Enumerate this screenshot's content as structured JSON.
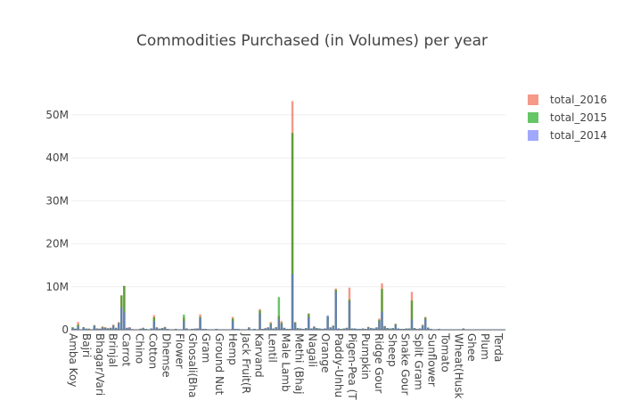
{
  "chart_data": {
    "type": "bar",
    "barmode": "overlay",
    "title": "Commodities Purchased (in Volumes) per year",
    "xlabel": "",
    "ylabel": "",
    "ylim": [
      0,
      56000000
    ],
    "y_ticks": [
      {
        "value": 0,
        "label": "0"
      },
      {
        "value": 10000000,
        "label": "10M"
      },
      {
        "value": 20000000,
        "label": "20M"
      },
      {
        "value": 30000000,
        "label": "30M"
      },
      {
        "value": 40000000,
        "label": "40M"
      },
      {
        "value": 50000000,
        "label": "50M"
      }
    ],
    "grid": true,
    "legend_position": "top-right",
    "x_tick_labels": [
      "Amba Koy",
      "Bajri",
      "Bhagar/Vari",
      "Brinjal",
      "Carrot",
      "Chino",
      "Cotton",
      "Dhemse",
      "Flower",
      "Ghosali(Bha",
      "Gram",
      "Ground Nut",
      "Hemp",
      "Jack Fruit(R",
      "Karvand",
      "Lentil",
      "Male Lamb",
      "Methi (Bhaj",
      "Nagali",
      "Orange",
      "Paddy-Unhu",
      "Pigen-Pea (T",
      "Pumpkin",
      "Ridge Gour",
      "Sheep",
      "Snake Gour",
      "Split Gram",
      "Sunflower",
      "Tomato",
      "Wheat(Husk",
      "Ghee",
      "Plum",
      "Terda"
    ],
    "series": [
      {
        "name": "total_2016",
        "color": "#ef553b",
        "opacity": 0.6,
        "values": [
          0.5,
          0.2,
          1.8,
          0.1,
          0.6,
          0.2,
          0.3,
          0.1,
          1.1,
          0.3,
          0.3,
          0.8,
          0.6,
          0.4,
          0.5,
          1.2,
          0.5,
          1.8,
          8.0,
          10.2,
          0.5,
          0.6,
          0.2,
          0.1,
          0.1,
          0.3,
          0.5,
          0.2,
          0.1,
          0.3,
          3.4,
          0.6,
          0.3,
          0.4,
          0.7,
          0.2,
          0.1,
          0.1,
          0.2,
          0.1,
          0.1,
          2.8,
          0.3,
          0.1,
          0.2,
          0.3,
          0.3,
          3.6,
          0.2,
          0.2,
          0.1,
          0.1,
          0.1,
          0.2,
          0.1,
          0.1,
          0.1,
          0.1,
          0.1,
          3.0,
          0.2,
          0.2,
          0.1,
          0.1,
          0.1,
          0.6,
          0.1,
          0.2,
          0.1,
          4.8,
          0.2,
          0.4,
          0.6,
          1.8,
          0.3,
          0.6,
          3.2,
          2.0,
          0.5,
          0.2,
          0.2,
          53.2,
          1.8,
          0.4,
          0.3,
          0.2,
          0.4,
          3.8,
          0.3,
          0.8,
          0.4,
          0.3,
          0.2,
          0.3,
          2.9,
          0.6,
          1.0,
          9.6,
          0.3,
          0.2,
          0.3,
          0.5,
          9.8,
          0.3,
          0.3,
          0.2,
          0.2,
          0.3,
          0.2,
          0.7,
          0.4,
          0.3,
          0.6,
          2.6,
          10.8,
          0.9,
          0.4,
          0.3,
          0.4,
          1.4,
          0.3,
          0.2,
          0.2,
          0.3,
          0.3,
          8.8,
          0.4,
          0.2,
          0.3,
          1.2,
          3.0,
          0.5,
          0.2,
          0.1,
          0.1,
          0.2,
          0.1,
          0.1,
          0.1,
          0.1,
          0.1,
          0.1,
          0.1,
          0.1,
          0.3,
          0.1,
          0.1,
          0.1,
          0.1,
          0.1,
          0.1,
          0.1,
          0.1,
          0.1,
          0.1,
          0.1,
          0.1,
          0.1,
          0.1,
          0.1
        ]
      },
      {
        "name": "total_2015",
        "color": "#00a000",
        "opacity": 0.6,
        "values": [
          0.6,
          0.3,
          1.2,
          0.1,
          0.6,
          0.3,
          0.2,
          0.1,
          1.0,
          0.3,
          0.2,
          0.6,
          0.5,
          0.3,
          0.4,
          1.0,
          0.4,
          1.6,
          8.0,
          10.2,
          0.4,
          0.5,
          0.1,
          0.1,
          0.1,
          0.2,
          0.4,
          0.2,
          0.1,
          0.3,
          2.9,
          0.5,
          0.2,
          0.4,
          0.6,
          0.2,
          0.1,
          0.1,
          0.2,
          0.1,
          0.1,
          3.5,
          0.3,
          0.1,
          0.2,
          0.2,
          0.3,
          3.0,
          0.2,
          0.2,
          0.1,
          0.1,
          0.1,
          0.2,
          0.1,
          0.1,
          0.1,
          0.1,
          0.1,
          2.6,
          0.2,
          0.2,
          0.1,
          0.1,
          0.1,
          0.5,
          0.1,
          0.2,
          0.1,
          4.5,
          0.2,
          0.3,
          0.5,
          1.5,
          0.3,
          0.6,
          7.6,
          1.6,
          0.4,
          0.2,
          0.2,
          45.8,
          1.7,
          0.4,
          0.3,
          0.2,
          0.4,
          3.7,
          0.3,
          0.7,
          0.4,
          0.3,
          0.2,
          0.3,
          3.2,
          0.5,
          0.9,
          9.3,
          0.3,
          0.2,
          0.3,
          0.4,
          7.0,
          0.3,
          0.3,
          0.2,
          0.2,
          0.3,
          0.2,
          0.6,
          0.4,
          0.3,
          0.5,
          2.3,
          9.5,
          0.8,
          0.4,
          0.3,
          0.4,
          1.3,
          0.3,
          0.2,
          0.2,
          0.3,
          0.3,
          6.8,
          0.4,
          0.2,
          0.3,
          1.0,
          2.8,
          0.5,
          0.2,
          0.1,
          0.1,
          0.2,
          0.1,
          0.1,
          0.1,
          0.1,
          0.1,
          0.1,
          0.1,
          0.1,
          0.3,
          0.1,
          0.1,
          0.1,
          0.1,
          0.1,
          0.1,
          0.1,
          0.1,
          0.1,
          0.1,
          0.1,
          0.1,
          0.1,
          0.1,
          0.1
        ]
      },
      {
        "name": "total_2014",
        "color": "#636efa",
        "opacity": 0.6,
        "values": [
          0.4,
          0.2,
          0.8,
          0.1,
          0.5,
          0.2,
          0.2,
          0.1,
          0.9,
          0.3,
          0.2,
          0.5,
          0.4,
          0.3,
          0.3,
          0.9,
          0.4,
          1.5,
          5.2,
          4.0,
          0.4,
          0.5,
          0.1,
          0.1,
          0.1,
          0.2,
          0.3,
          0.2,
          0.1,
          0.3,
          2.0,
          0.5,
          0.2,
          0.3,
          0.5,
          0.2,
          0.1,
          0.1,
          0.2,
          0.1,
          0.1,
          2.0,
          0.3,
          0.1,
          0.2,
          0.2,
          0.3,
          2.7,
          0.2,
          0.2,
          0.1,
          0.1,
          0.1,
          0.2,
          0.1,
          0.1,
          0.1,
          0.1,
          0.1,
          2.0,
          0.2,
          0.2,
          0.1,
          0.1,
          0.1,
          0.5,
          0.1,
          0.2,
          0.1,
          3.8,
          0.2,
          0.3,
          0.5,
          1.2,
          0.3,
          0.5,
          2.6,
          1.3,
          0.4,
          0.2,
          0.2,
          13.0,
          1.5,
          0.3,
          0.3,
          0.2,
          0.3,
          3.0,
          0.3,
          0.6,
          0.3,
          0.3,
          0.2,
          0.3,
          3.3,
          0.5,
          0.8,
          8.8,
          0.3,
          0.2,
          0.2,
          0.4,
          6.6,
          0.3,
          0.3,
          0.2,
          0.2,
          0.3,
          0.2,
          0.5,
          0.3,
          0.3,
          0.5,
          2.0,
          4.2,
          0.7,
          0.3,
          0.3,
          0.3,
          1.1,
          0.3,
          0.2,
          0.2,
          0.2,
          0.3,
          2.4,
          0.3,
          0.2,
          0.3,
          0.9,
          2.4,
          0.4,
          0.2,
          0.1,
          0.1,
          0.2,
          0.1,
          0.1,
          0.1,
          0.1,
          0.1,
          0.1,
          0.1,
          0.1,
          0.2,
          0.1,
          0.1,
          0.1,
          0.1,
          0.1,
          0.1,
          0.1,
          0.1,
          0.1,
          0.1,
          0.1,
          0.1,
          0.1,
          0.1,
          0.1
        ]
      }
    ],
    "value_unit_note": "values in millions"
  }
}
